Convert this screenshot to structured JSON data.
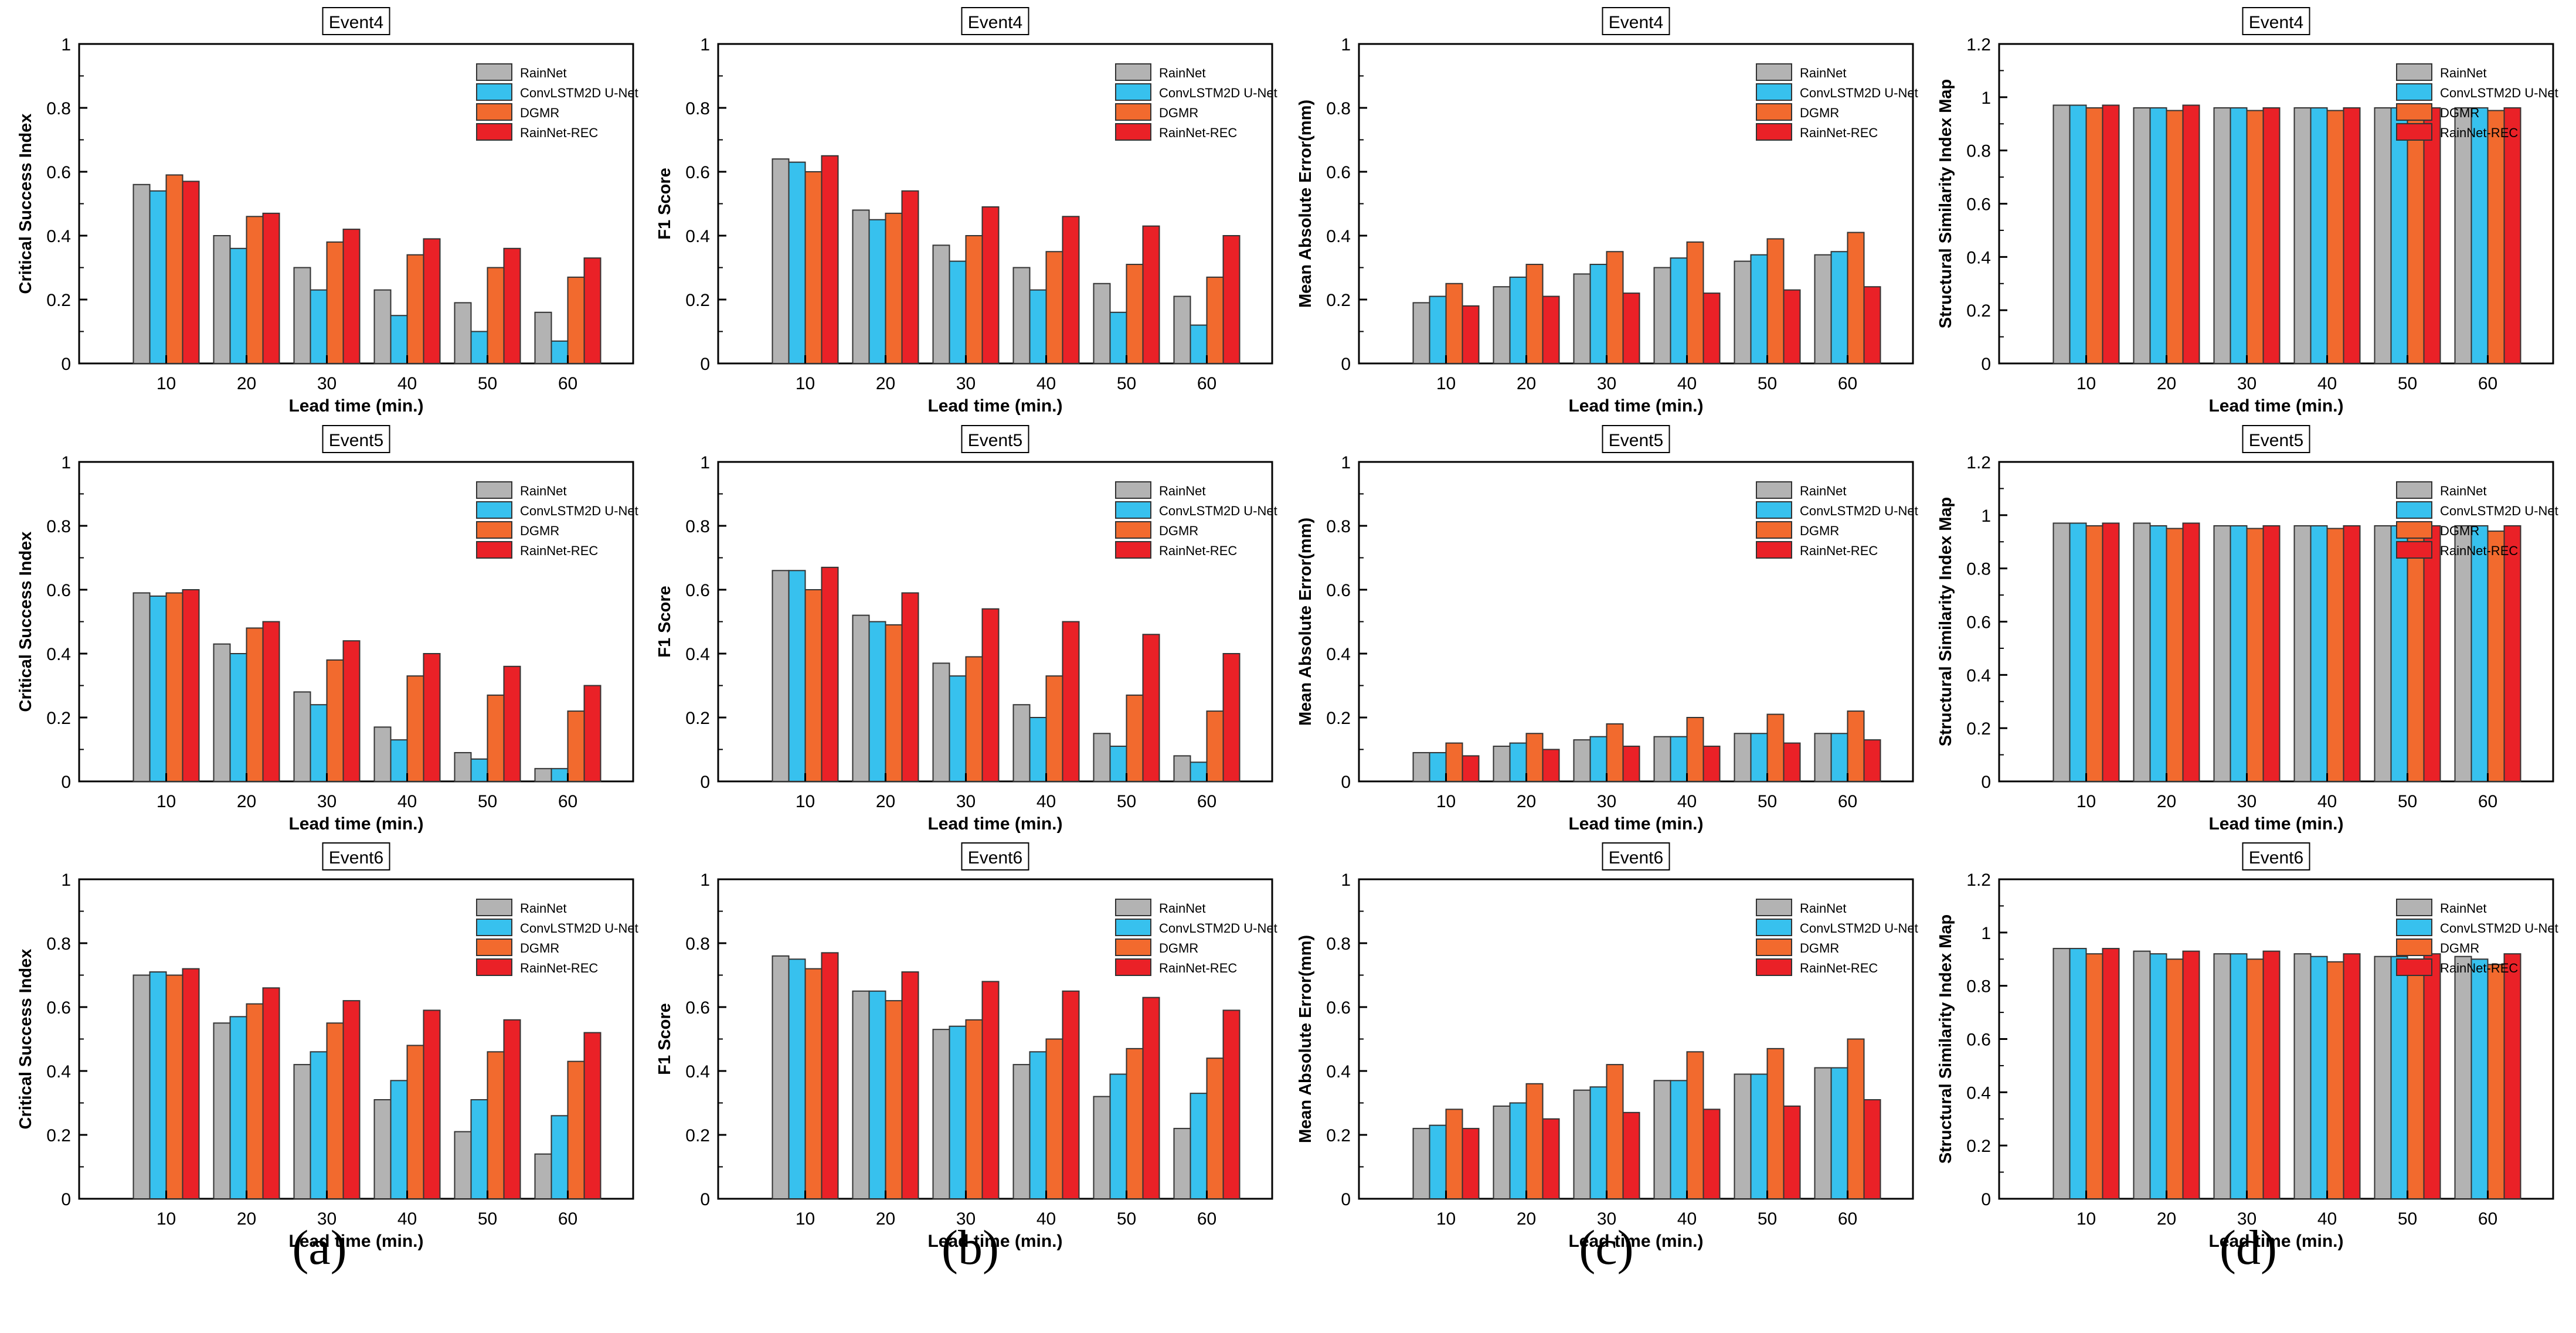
{
  "colors": {
    "RainNet": "#b3b3b3",
    "ConvLSTM2D U-Net": "#37c1ee",
    "DGMR": "#f26a2e",
    "RainNet-REC": "#ea2127"
  },
  "panel_labels": [
    "(a)",
    "(b)",
    "(c)",
    "(d)"
  ],
  "chart_data": [
    {
      "type": "bar",
      "title": "Event4",
      "xlabel": "Lead time (min.)",
      "ylabel": "Critical Success Index",
      "categories": [
        "10",
        "20",
        "30",
        "40",
        "50",
        "60"
      ],
      "ylim": [
        0,
        1
      ],
      "yticks": [
        "0",
        "0.2",
        "0.4",
        "0.6",
        "0.8",
        "1"
      ],
      "series": [
        {
          "name": "RainNet",
          "values": [
            0.56,
            0.4,
            0.3,
            0.23,
            0.19,
            0.16
          ]
        },
        {
          "name": "ConvLSTM2D U-Net",
          "values": [
            0.54,
            0.36,
            0.23,
            0.15,
            0.1,
            0.07
          ]
        },
        {
          "name": "DGMR",
          "values": [
            0.59,
            0.46,
            0.38,
            0.34,
            0.3,
            0.27
          ]
        },
        {
          "name": "RainNet-REC",
          "values": [
            0.57,
            0.47,
            0.42,
            0.39,
            0.36,
            0.33
          ]
        }
      ]
    },
    {
      "type": "bar",
      "title": "Event4",
      "xlabel": "Lead time (min.)",
      "ylabel": "F1 Score",
      "categories": [
        "10",
        "20",
        "30",
        "40",
        "50",
        "60"
      ],
      "ylim": [
        0,
        1
      ],
      "yticks": [
        "0",
        "0.2",
        "0.4",
        "0.6",
        "0.8",
        "1"
      ],
      "series": [
        {
          "name": "RainNet",
          "values": [
            0.64,
            0.48,
            0.37,
            0.3,
            0.25,
            0.21
          ]
        },
        {
          "name": "ConvLSTM2D U-Net",
          "values": [
            0.63,
            0.45,
            0.32,
            0.23,
            0.16,
            0.12
          ]
        },
        {
          "name": "DGMR",
          "values": [
            0.6,
            0.47,
            0.4,
            0.35,
            0.31,
            0.27
          ]
        },
        {
          "name": "RainNet-REC",
          "values": [
            0.65,
            0.54,
            0.49,
            0.46,
            0.43,
            0.4
          ]
        }
      ]
    },
    {
      "type": "bar",
      "title": "Event4",
      "xlabel": "Lead time (min.)",
      "ylabel": "Mean Absolute Error(mm)",
      "categories": [
        "10",
        "20",
        "30",
        "40",
        "50",
        "60"
      ],
      "ylim": [
        0,
        1
      ],
      "yticks": [
        "0",
        "0.2",
        "0.4",
        "0.6",
        "0.8",
        "1"
      ],
      "series": [
        {
          "name": "RainNet",
          "values": [
            0.19,
            0.24,
            0.28,
            0.3,
            0.32,
            0.34
          ]
        },
        {
          "name": "ConvLSTM2D U-Net",
          "values": [
            0.21,
            0.27,
            0.31,
            0.33,
            0.34,
            0.35
          ]
        },
        {
          "name": "DGMR",
          "values": [
            0.25,
            0.31,
            0.35,
            0.38,
            0.39,
            0.41
          ]
        },
        {
          "name": "RainNet-REC",
          "values": [
            0.18,
            0.21,
            0.22,
            0.22,
            0.23,
            0.24
          ]
        }
      ]
    },
    {
      "type": "bar",
      "title": "Event4",
      "xlabel": "Lead time (min.)",
      "ylabel": "Structural Similarity Index Map",
      "categories": [
        "10",
        "20",
        "30",
        "40",
        "50",
        "60"
      ],
      "ylim": [
        0,
        1.2
      ],
      "yticks": [
        "0",
        "0.2",
        "0.4",
        "0.6",
        "0.8",
        "1",
        "1.2"
      ],
      "series": [
        {
          "name": "RainNet",
          "values": [
            0.97,
            0.96,
            0.96,
            0.96,
            0.96,
            0.96
          ]
        },
        {
          "name": "ConvLSTM2D U-Net",
          "values": [
            0.97,
            0.96,
            0.96,
            0.96,
            0.96,
            0.96
          ]
        },
        {
          "name": "DGMR",
          "values": [
            0.96,
            0.95,
            0.95,
            0.95,
            0.95,
            0.95
          ]
        },
        {
          "name": "RainNet-REC",
          "values": [
            0.97,
            0.97,
            0.96,
            0.96,
            0.96,
            0.96
          ]
        }
      ]
    },
    {
      "type": "bar",
      "title": "Event5",
      "xlabel": "Lead time (min.)",
      "ylabel": "Critical Success Index",
      "categories": [
        "10",
        "20",
        "30",
        "40",
        "50",
        "60"
      ],
      "ylim": [
        0,
        1
      ],
      "yticks": [
        "0",
        "0.2",
        "0.4",
        "0.6",
        "0.8",
        "1"
      ],
      "series": [
        {
          "name": "RainNet",
          "values": [
            0.59,
            0.43,
            0.28,
            0.17,
            0.09,
            0.04
          ]
        },
        {
          "name": "ConvLSTM2D U-Net",
          "values": [
            0.58,
            0.4,
            0.24,
            0.13,
            0.07,
            0.04
          ]
        },
        {
          "name": "DGMR",
          "values": [
            0.59,
            0.48,
            0.38,
            0.33,
            0.27,
            0.22
          ]
        },
        {
          "name": "RainNet-REC",
          "values": [
            0.6,
            0.5,
            0.44,
            0.4,
            0.36,
            0.3
          ]
        }
      ]
    },
    {
      "type": "bar",
      "title": "Event5",
      "xlabel": "Lead time (min.)",
      "ylabel": "F1 Score",
      "categories": [
        "10",
        "20",
        "30",
        "40",
        "50",
        "60"
      ],
      "ylim": [
        0,
        1
      ],
      "yticks": [
        "0",
        "0.2",
        "0.4",
        "0.6",
        "0.8",
        "1"
      ],
      "series": [
        {
          "name": "RainNet",
          "values": [
            0.66,
            0.52,
            0.37,
            0.24,
            0.15,
            0.08
          ]
        },
        {
          "name": "ConvLSTM2D U-Net",
          "values": [
            0.66,
            0.5,
            0.33,
            0.2,
            0.11,
            0.06
          ]
        },
        {
          "name": "DGMR",
          "values": [
            0.6,
            0.49,
            0.39,
            0.33,
            0.27,
            0.22
          ]
        },
        {
          "name": "RainNet-REC",
          "values": [
            0.67,
            0.59,
            0.54,
            0.5,
            0.46,
            0.4
          ]
        }
      ]
    },
    {
      "type": "bar",
      "title": "Event5",
      "xlabel": "Lead time (min.)",
      "ylabel": "Mean Absolute Error(mm)",
      "categories": [
        "10",
        "20",
        "30",
        "40",
        "50",
        "60"
      ],
      "ylim": [
        0,
        1
      ],
      "yticks": [
        "0",
        "0.2",
        "0.4",
        "0.6",
        "0.8",
        "1"
      ],
      "series": [
        {
          "name": "RainNet",
          "values": [
            0.09,
            0.11,
            0.13,
            0.14,
            0.15,
            0.15
          ]
        },
        {
          "name": "ConvLSTM2D U-Net",
          "values": [
            0.09,
            0.12,
            0.14,
            0.14,
            0.15,
            0.15
          ]
        },
        {
          "name": "DGMR",
          "values": [
            0.12,
            0.15,
            0.18,
            0.2,
            0.21,
            0.22
          ]
        },
        {
          "name": "RainNet-REC",
          "values": [
            0.08,
            0.1,
            0.11,
            0.11,
            0.12,
            0.13
          ]
        }
      ]
    },
    {
      "type": "bar",
      "title": "Event5",
      "xlabel": "Lead time (min.)",
      "ylabel": "Structural Similarity Index Map",
      "categories": [
        "10",
        "20",
        "30",
        "40",
        "50",
        "60"
      ],
      "ylim": [
        0,
        1.2
      ],
      "yticks": [
        "0",
        "0.2",
        "0.4",
        "0.6",
        "0.8",
        "1",
        "1.2"
      ],
      "series": [
        {
          "name": "RainNet",
          "values": [
            0.97,
            0.97,
            0.96,
            0.96,
            0.96,
            0.96
          ]
        },
        {
          "name": "ConvLSTM2D U-Net",
          "values": [
            0.97,
            0.96,
            0.96,
            0.96,
            0.96,
            0.96
          ]
        },
        {
          "name": "DGMR",
          "values": [
            0.96,
            0.95,
            0.95,
            0.95,
            0.95,
            0.94
          ]
        },
        {
          "name": "RainNet-REC",
          "values": [
            0.97,
            0.97,
            0.96,
            0.96,
            0.96,
            0.96
          ]
        }
      ]
    },
    {
      "type": "bar",
      "title": "Event6",
      "xlabel": "Lead time (min.)",
      "ylabel": "Critical Success Index",
      "categories": [
        "10",
        "20",
        "30",
        "40",
        "50",
        "60"
      ],
      "ylim": [
        0,
        1
      ],
      "yticks": [
        "0",
        "0.2",
        "0.4",
        "0.6",
        "0.8",
        "1"
      ],
      "series": [
        {
          "name": "RainNet",
          "values": [
            0.7,
            0.55,
            0.42,
            0.31,
            0.21,
            0.14
          ]
        },
        {
          "name": "ConvLSTM2D U-Net",
          "values": [
            0.71,
            0.57,
            0.46,
            0.37,
            0.31,
            0.26
          ]
        },
        {
          "name": "DGMR",
          "values": [
            0.7,
            0.61,
            0.55,
            0.48,
            0.46,
            0.43
          ]
        },
        {
          "name": "RainNet-REC",
          "values": [
            0.72,
            0.66,
            0.62,
            0.59,
            0.56,
            0.52
          ]
        }
      ]
    },
    {
      "type": "bar",
      "title": "Event6",
      "xlabel": "Lead time (min.)",
      "ylabel": "F1 Score",
      "categories": [
        "10",
        "20",
        "30",
        "40",
        "50",
        "60"
      ],
      "ylim": [
        0,
        1
      ],
      "yticks": [
        "0",
        "0.2",
        "0.4",
        "0.6",
        "0.8",
        "1"
      ],
      "series": [
        {
          "name": "RainNet",
          "values": [
            0.76,
            0.65,
            0.53,
            0.42,
            0.32,
            0.22
          ]
        },
        {
          "name": "ConvLSTM2D U-Net",
          "values": [
            0.75,
            0.65,
            0.54,
            0.46,
            0.39,
            0.33
          ]
        },
        {
          "name": "DGMR",
          "values": [
            0.72,
            0.62,
            0.56,
            0.5,
            0.47,
            0.44
          ]
        },
        {
          "name": "RainNet-REC",
          "values": [
            0.77,
            0.71,
            0.68,
            0.65,
            0.63,
            0.59
          ]
        }
      ]
    },
    {
      "type": "bar",
      "title": "Event6",
      "xlabel": "Lead time (min.)",
      "ylabel": "Mean Absolute Error(mm)",
      "categories": [
        "10",
        "20",
        "30",
        "40",
        "50",
        "60"
      ],
      "ylim": [
        0,
        1
      ],
      "yticks": [
        "0",
        "0.2",
        "0.4",
        "0.6",
        "0.8",
        "1"
      ],
      "series": [
        {
          "name": "RainNet",
          "values": [
            0.22,
            0.29,
            0.34,
            0.37,
            0.39,
            0.41
          ]
        },
        {
          "name": "ConvLSTM2D U-Net",
          "values": [
            0.23,
            0.3,
            0.35,
            0.37,
            0.39,
            0.41
          ]
        },
        {
          "name": "DGMR",
          "values": [
            0.28,
            0.36,
            0.42,
            0.46,
            0.47,
            0.5
          ]
        },
        {
          "name": "RainNet-REC",
          "values": [
            0.22,
            0.25,
            0.27,
            0.28,
            0.29,
            0.31
          ]
        }
      ]
    },
    {
      "type": "bar",
      "title": "Event6",
      "xlabel": "Lead time (min.)",
      "ylabel": "Structural Similarity Index Map",
      "categories": [
        "10",
        "20",
        "30",
        "40",
        "50",
        "60"
      ],
      "ylim": [
        0,
        1.2
      ],
      "yticks": [
        "0",
        "0.2",
        "0.4",
        "0.6",
        "0.8",
        "1",
        "1.2"
      ],
      "series": [
        {
          "name": "RainNet",
          "values": [
            0.94,
            0.93,
            0.92,
            0.92,
            0.91,
            0.91
          ]
        },
        {
          "name": "ConvLSTM2D U-Net",
          "values": [
            0.94,
            0.92,
            0.92,
            0.91,
            0.91,
            0.9
          ]
        },
        {
          "name": "DGMR",
          "values": [
            0.92,
            0.9,
            0.9,
            0.89,
            0.89,
            0.88
          ]
        },
        {
          "name": "RainNet-REC",
          "values": [
            0.94,
            0.93,
            0.93,
            0.92,
            0.92,
            0.92
          ]
        }
      ]
    }
  ]
}
